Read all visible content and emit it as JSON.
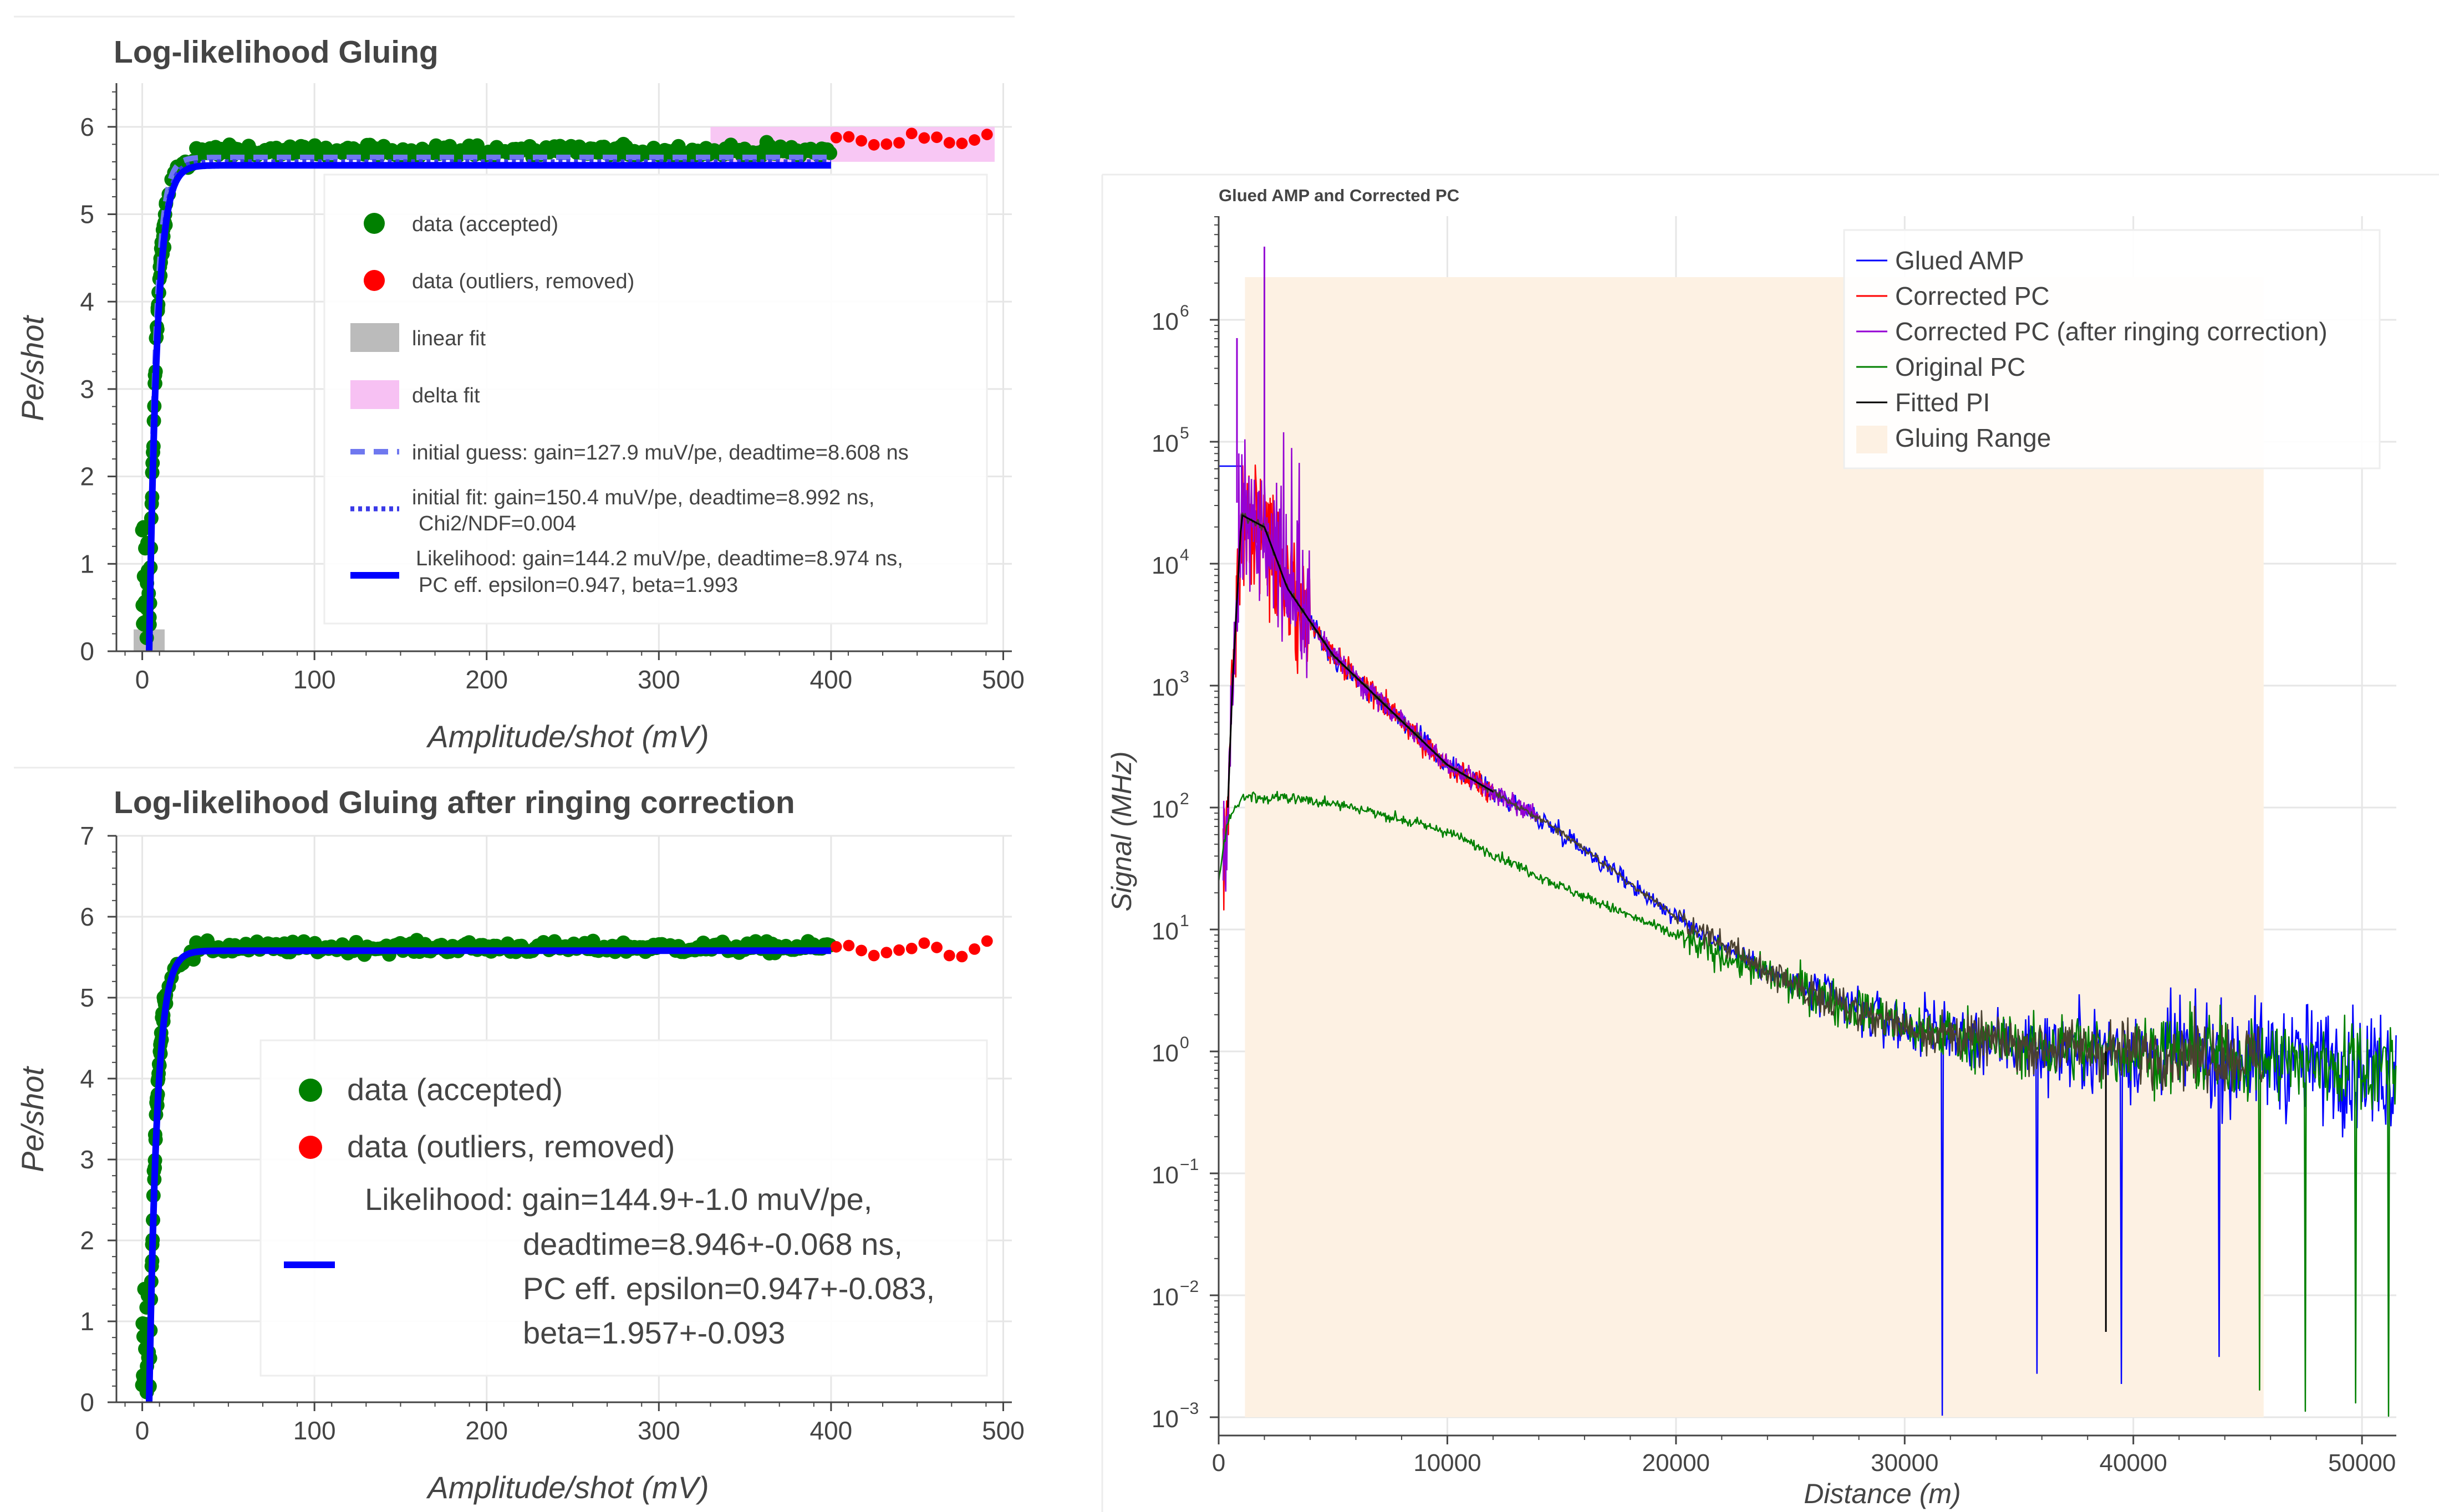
{
  "colors": {
    "accepted": "#008000",
    "outlier": "#ff0000",
    "fit_blue": "#0000ff",
    "init_guess": "#6f78ef",
    "linear_fit": "#bbbbbb",
    "delta_fit": "#f7c1f3",
    "gluing_range": "#fdf1e3",
    "glued_amp": "#0000ff",
    "corrected_pc": "#ff0000",
    "corrected_pc_ringing": "#9400d3",
    "original_pc": "#008000",
    "fitted_pi": "#000000"
  },
  "chart_data": [
    {
      "type": "scatter",
      "title": "Log-likelihood Gluing",
      "xlabel": "Amplitude/shot (mV)",
      "ylabel": "Pe/shot",
      "xlim": [
        -15,
        505
      ],
      "ylim": [
        0,
        6.5
      ],
      "xticks": [
        "0",
        "100",
        "200",
        "300",
        "400",
        "500"
      ],
      "yticks": [
        "0",
        "1",
        "2",
        "3",
        "4",
        "5",
        "6"
      ],
      "accepted_range_mV": [
        0,
        400
      ],
      "outlier_range_mV": [
        400,
        497
      ],
      "delta_fit_band": {
        "x": [
          330,
          495
        ],
        "y": [
          5.6,
          6.0
        ]
      },
      "linear_fit_band": {
        "x": [
          -5,
          13
        ],
        "y": [
          0,
          0.25
        ]
      },
      "legend": [
        {
          "marker": "circle-accepted",
          "label": "data (accepted)"
        },
        {
          "marker": "circle-outlier",
          "label": "data (outliers, removed)"
        },
        {
          "marker": "box-linear",
          "label": "linear fit"
        },
        {
          "marker": "box-delta",
          "label": "delta fit"
        },
        {
          "marker": "line-dashed",
          "label": "initial guess: gain=127.9 muV/pe, deadtime=8.608 ns"
        },
        {
          "marker": "line-dotted",
          "label": "initial fit: gain=150.4 muV/pe, deadtime=8.992 ns,",
          "label2": "Chi2/NDF=0.004"
        },
        {
          "marker": "line-solid",
          "label": " Likelihood: gain=144.2 muV/pe, deadtime=8.974 ns,",
          "label2": "PC eff. epsilon=0.947, beta=1.993"
        }
      ],
      "likelihood_fit": {
        "gain_muV_per_pe": 144.2,
        "deadtime_ns": 8.974,
        "epsilon": 0.947,
        "beta": 1.993,
        "plateau": 5.56
      }
    },
    {
      "type": "scatter",
      "title": "Log-likelihood Gluing after ringing correction",
      "xlabel": "Amplitude/shot (mV)",
      "ylabel": "Pe/shot",
      "xlim": [
        -15,
        505
      ],
      "ylim": [
        0,
        7
      ],
      "xticks": [
        "0",
        "100",
        "200",
        "300",
        "400",
        "500"
      ],
      "yticks": [
        "0",
        "1",
        "2",
        "3",
        "4",
        "5",
        "6",
        "7"
      ],
      "legend": [
        {
          "marker": "circle-accepted",
          "label": "data (accepted)"
        },
        {
          "marker": "circle-outlier",
          "label": "data (outliers, removed)"
        },
        {
          "marker": "line-solid",
          "label": "Likelihood: gain=144.9+-1.0 muV/pe,",
          "label2": "deadtime=8.946+-0.068 ns,",
          "label3": "PC eff. epsilon=0.947+-0.083,",
          "label4": "beta=1.957+-0.093"
        }
      ],
      "likelihood_fit": {
        "gain_muV_per_pe": 144.9,
        "deadtime_ns": 8.946,
        "epsilon": 0.947,
        "beta": 1.957,
        "plateau": 5.58
      }
    },
    {
      "type": "line",
      "title": "Glued AMP and Corrected PC",
      "xlabel": "Distance (m)",
      "ylabel": "Signal (MHz)",
      "xlim": [
        0,
        51500
      ],
      "ylim_log10": [
        -3.15,
        6.85
      ],
      "xticks": [
        "0",
        "10000",
        "20000",
        "30000",
        "40000",
        "50000"
      ],
      "yticks": [
        {
          "base": "10",
          "exp": "6",
          "v": 6
        },
        {
          "base": "10",
          "exp": "5",
          "v": 5
        },
        {
          "base": "10",
          "exp": "4",
          "v": 4
        },
        {
          "base": "10",
          "exp": "3",
          "v": 3
        },
        {
          "base": "10",
          "exp": "2",
          "v": 2
        },
        {
          "base": "10",
          "exp": "1",
          "v": 1
        },
        {
          "base": "10",
          "exp": "0",
          "v": 0
        },
        {
          "base": "10",
          "exp": "−1",
          "v": -1
        },
        {
          "base": "10",
          "exp": "−2",
          "v": -2
        },
        {
          "base": "10",
          "exp": "−3",
          "v": -3
        }
      ],
      "gluing_range": {
        "x": [
          1150,
          45700
        ],
        "log10_y": [
          -3.0,
          6.35
        ]
      },
      "legend": [
        {
          "key": "glued_amp",
          "label": "Glued AMP"
        },
        {
          "key": "corrected_pc",
          "label": "Corrected PC"
        },
        {
          "key": "corrected_pc_ringing",
          "label": "Corrected PC (after ringing correction)"
        },
        {
          "key": "original_pc",
          "label": "Original PC"
        },
        {
          "key": "fitted_pi",
          "label": "Fitted PI"
        },
        {
          "key": "gluing_range",
          "label": "Gluing Range"
        }
      ],
      "series_anchor_points_log10": {
        "main": [
          [
            300,
            1.5
          ],
          [
            600,
            3.0
          ],
          [
            1000,
            4.4
          ],
          [
            2000,
            4.3
          ],
          [
            3000,
            3.8
          ],
          [
            5000,
            3.25
          ],
          [
            10000,
            2.35
          ],
          [
            15000,
            1.8
          ],
          [
            20000,
            1.1
          ],
          [
            25000,
            0.55
          ],
          [
            30000,
            0.2
          ],
          [
            35000,
            0.05
          ],
          [
            40000,
            0.0
          ],
          [
            45000,
            -0.05
          ],
          [
            51500,
            -0.15
          ]
        ],
        "original_pc": [
          [
            0,
            1.4
          ],
          [
            400,
            1.9
          ],
          [
            1000,
            2.08
          ],
          [
            3000,
            2.08
          ],
          [
            6000,
            2.0
          ],
          [
            10000,
            1.8
          ],
          [
            15000,
            1.35
          ],
          [
            20000,
            0.95
          ],
          [
            25000,
            0.55
          ],
          [
            30000,
            0.2
          ],
          [
            35000,
            0.05
          ],
          [
            40000,
            0.0
          ],
          [
            45000,
            -0.05
          ],
          [
            51500,
            -0.15
          ]
        ],
        "glued_amp_flat": [
          [
            0,
            4.8
          ],
          [
            1000,
            4.8
          ]
        ]
      }
    }
  ]
}
